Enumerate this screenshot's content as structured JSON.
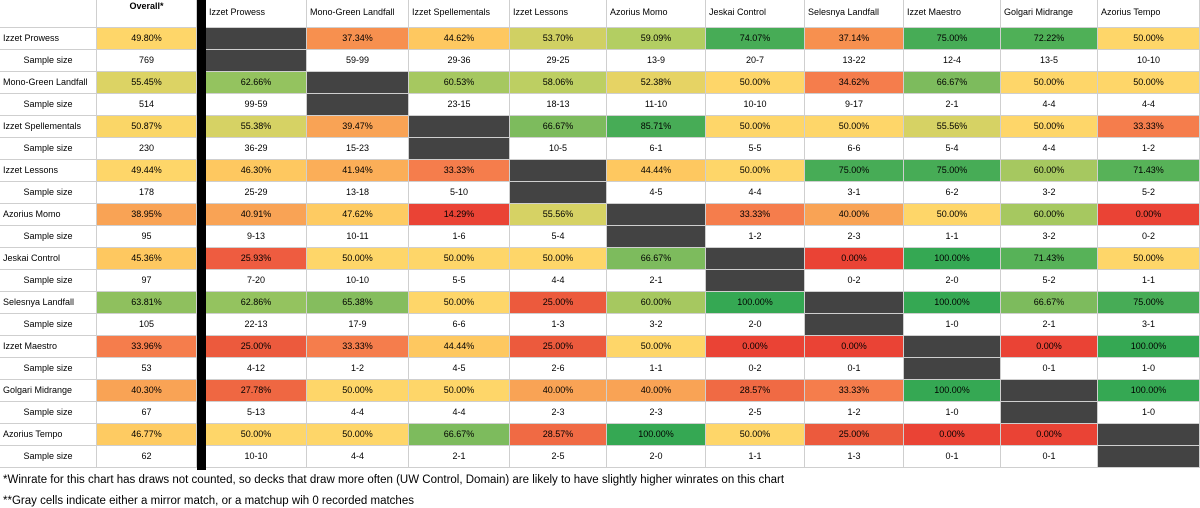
{
  "chart_data": {
    "type": "table",
    "title": "",
    "overall_header": "Overall*",
    "sample_label": "Sample size",
    "columns": [
      "Izzet Prowess",
      "Mono-Green Landfall",
      "Izzet Spellementals",
      "Izzet Lessons",
      "Azorius Momo",
      "Jeskai Control",
      "Selesnya Landfall",
      "Izzet Maestro",
      "Golgari Midrange",
      "Azorius Tempo"
    ],
    "rows": [
      {
        "name": "Izzet Prowess",
        "overall": "49.80%",
        "overall_color": "#fed669",
        "overall_sample": "769",
        "winrates": [
          null,
          "37.34%",
          "44.62%",
          "53.70%",
          "59.09%",
          "74.07%",
          "37.14%",
          "75.00%",
          "72.22%",
          "50.00%"
        ],
        "samples": [
          "",
          "59-99",
          "29-36",
          "29-25",
          "13-9",
          "20-7",
          "13-22",
          "12-4",
          "13-5",
          "10-10"
        ],
        "colors": [
          "#434343",
          "#f7904f",
          "#fec860",
          "#d0d063",
          "#b3ce62",
          "#47ac56",
          "#f7904f",
          "#47ac56",
          "#4fb057",
          "#fed669"
        ]
      },
      {
        "name": "Mono-Green Landfall",
        "overall": "55.45%",
        "overall_color": "#dcd364",
        "overall_sample": "514",
        "winrates": [
          "62.66%",
          null,
          "60.53%",
          "58.06%",
          "52.38%",
          "50.00%",
          "34.62%",
          "66.67%",
          "50.00%",
          "50.00%"
        ],
        "samples": [
          "99-59",
          "",
          "23-15",
          "18-13",
          "11-10",
          "10-10",
          "9-17",
          "2-1",
          "4-4",
          "4-4"
        ],
        "colors": [
          "#94c35f",
          "#434343",
          "#a6c860",
          "#bdcf62",
          "#e6d364",
          "#fed669",
          "#f57d4c",
          "#7dbb5d",
          "#fed669",
          "#fed669"
        ]
      },
      {
        "name": "Izzet Spellementals",
        "overall": "50.87%",
        "overall_color": "#fad667",
        "overall_sample": "230",
        "winrates": [
          "55.38%",
          "39.47%",
          null,
          "66.67%",
          "85.71%",
          "50.00%",
          "50.00%",
          "55.56%",
          "50.00%",
          "33.33%"
        ],
        "samples": [
          "36-29",
          "15-23",
          "",
          "10-5",
          "6-1",
          "5-5",
          "6-6",
          "5-4",
          "4-4",
          "1-2"
        ],
        "colors": [
          "#d6d264",
          "#f9a355",
          "#434343",
          "#7dbb5d",
          "#47ac56",
          "#fed669",
          "#fed669",
          "#d6d264",
          "#fed669",
          "#f57d4c"
        ]
      },
      {
        "name": "Izzet Lessons",
        "overall": "49.44%",
        "overall_color": "#fed669",
        "overall_sample": "178",
        "winrates": [
          "46.30%",
          "41.94%",
          "33.33%",
          null,
          "44.44%",
          "50.00%",
          "75.00%",
          "75.00%",
          "60.00%",
          "71.43%"
        ],
        "samples": [
          "25-29",
          "13-18",
          "5-10",
          "",
          "4-5",
          "4-4",
          "3-1",
          "6-2",
          "3-2",
          "5-2"
        ],
        "colors": [
          "#fec860",
          "#fbae58",
          "#f57d4c",
          "#434343",
          "#fec860",
          "#fed669",
          "#47ac56",
          "#47ac56",
          "#a6c860",
          "#57b258"
        ]
      },
      {
        "name": "Azorius Momo",
        "overall": "38.95%",
        "overall_color": "#f9a355",
        "overall_sample": "95",
        "winrates": [
          "40.91%",
          "47.62%",
          "14.29%",
          "55.56%",
          null,
          "33.33%",
          "40.00%",
          "50.00%",
          "60.00%",
          "0.00%"
        ],
        "samples": [
          "9-13",
          "10-11",
          "1-6",
          "5-4",
          "",
          "1-2",
          "2-3",
          "1-1",
          "3-2",
          "0-2"
        ],
        "colors": [
          "#f9a355",
          "#fecb62",
          "#ea4335",
          "#d6d264",
          "#434343",
          "#f57d4c",
          "#f9a355",
          "#fed669",
          "#a6c860",
          "#ea4335"
        ]
      },
      {
        "name": "Jeskai Control",
        "overall": "45.36%",
        "overall_color": "#fec860",
        "overall_sample": "97",
        "winrates": [
          "25.93%",
          "50.00%",
          "50.00%",
          "50.00%",
          "66.67%",
          null,
          "0.00%",
          "100.00%",
          "71.43%",
          "50.00%"
        ],
        "samples": [
          "7-20",
          "10-10",
          "5-5",
          "4-4",
          "2-1",
          "",
          "0-2",
          "2-0",
          "5-2",
          "1-1"
        ],
        "colors": [
          "#ee5c40",
          "#fed669",
          "#fed669",
          "#fed669",
          "#7dbb5d",
          "#434343",
          "#ea4335",
          "#35a853",
          "#57b258",
          "#fed669"
        ]
      },
      {
        "name": "Selesnya Landfall",
        "overall": "63.81%",
        "overall_color": "#8fc05e",
        "overall_sample": "105",
        "winrates": [
          "62.86%",
          "65.38%",
          "50.00%",
          "25.00%",
          "60.00%",
          "100.00%",
          null,
          "100.00%",
          "66.67%",
          "75.00%"
        ],
        "samples": [
          "22-13",
          "17-9",
          "6-6",
          "1-3",
          "3-2",
          "2-0",
          "",
          "1-0",
          "2-1",
          "3-1"
        ],
        "colors": [
          "#94c35f",
          "#85bd5e",
          "#fed669",
          "#ec5a3d",
          "#a6c860",
          "#35a853",
          "#434343",
          "#35a853",
          "#7dbb5d",
          "#47ac56"
        ]
      },
      {
        "name": "Izzet Maestro",
        "overall": "33.96%",
        "overall_color": "#f57d4c",
        "overall_sample": "53",
        "winrates": [
          "25.00%",
          "33.33%",
          "44.44%",
          "25.00%",
          "50.00%",
          "0.00%",
          "0.00%",
          null,
          "0.00%",
          "100.00%"
        ],
        "samples": [
          "4-12",
          "1-2",
          "4-5",
          "2-6",
          "1-1",
          "0-2",
          "0-1",
          "",
          "0-1",
          "1-0"
        ],
        "colors": [
          "#ec5a3d",
          "#f57d4c",
          "#fec860",
          "#ec5a3d",
          "#fed669",
          "#ea4335",
          "#ea4335",
          "#434343",
          "#ea4335",
          "#35a853"
        ]
      },
      {
        "name": "Golgari Midrange",
        "overall": "40.30%",
        "overall_color": "#f9a355",
        "overall_sample": "67",
        "winrates": [
          "27.78%",
          "50.00%",
          "50.00%",
          "40.00%",
          "40.00%",
          "28.57%",
          "33.33%",
          "100.00%",
          null,
          "100.00%"
        ],
        "samples": [
          "5-13",
          "4-4",
          "4-4",
          "2-3",
          "2-3",
          "2-5",
          "1-2",
          "1-0",
          "",
          "1-0"
        ],
        "colors": [
          "#ef6742",
          "#fed669",
          "#fed669",
          "#f9a355",
          "#f9a355",
          "#f06a44",
          "#f57d4c",
          "#35a853",
          "#434343",
          "#35a853"
        ]
      },
      {
        "name": "Azorius Tempo",
        "overall": "46.77%",
        "overall_color": "#fecb62",
        "overall_sample": "62",
        "winrates": [
          "50.00%",
          "50.00%",
          "66.67%",
          "28.57%",
          "100.00%",
          "50.00%",
          "25.00%",
          "0.00%",
          "0.00%",
          null
        ],
        "samples": [
          "10-10",
          "4-4",
          "2-1",
          "2-5",
          "2-0",
          "1-1",
          "1-3",
          "0-1",
          "0-1",
          ""
        ],
        "colors": [
          "#fed669",
          "#fed669",
          "#7dbb5d",
          "#f06a44",
          "#35a853",
          "#fed669",
          "#ec5a3d",
          "#ea4335",
          "#ea4335",
          "#434343"
        ]
      }
    ]
  },
  "footnotes": [
    "*Winrate for this chart has draws not counted, so decks that draw more often (UW Control, Domain) are likely to have slightly higher winrates on this chart",
    "**Gray cells indicate either a mirror match, or a matchup wih 0 recorded matches"
  ]
}
